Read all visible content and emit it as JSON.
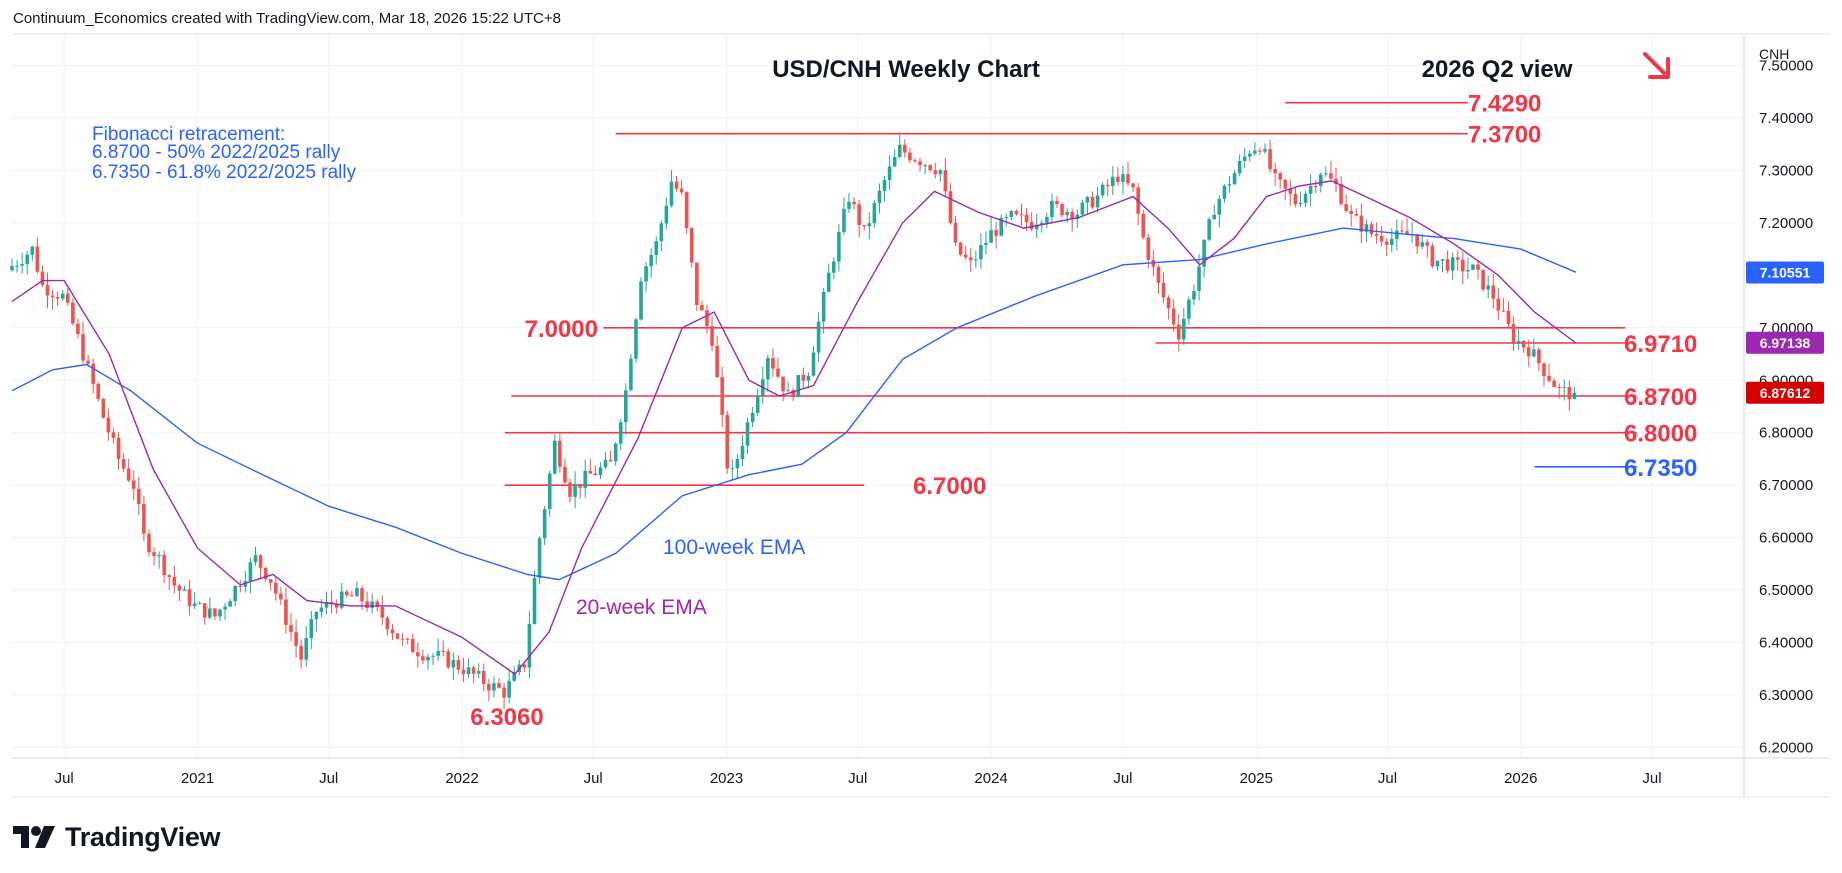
{
  "credit": "Continuum_Economics created with TradingView.com, Mar 18, 2026 15:22 UTC+8",
  "brand": "TradingView",
  "colors": {
    "up": "#26a69a",
    "down": "#ef5350",
    "level": "#f23645",
    "fib": "#2962ff",
    "ema20": "#9c27b0",
    "ema100": "#2962ff",
    "grid": "#f0f3fa",
    "text": "#131722"
  },
  "chart_data": {
    "type": "candlestick",
    "title": "USD/CNH Weekly Chart",
    "subtitle": "2026 Q2 view",
    "currency": "CNH",
    "outlook_icon": "arrow-down-right-icon",
    "y_ticks": [
      "7.50000",
      "7.40000",
      "7.30000",
      "7.20000",
      "7.00000",
      "6.90000",
      "6.80000",
      "6.70000",
      "6.60000",
      "6.50000",
      "6.40000",
      "6.30000",
      "6.20000"
    ],
    "ylim": [
      6.18,
      7.56
    ],
    "x_ticks": [
      "Jul",
      "2021",
      "Jul",
      "2022",
      "Jul",
      "2023",
      "Jul",
      "2024",
      "Jul",
      "2025",
      "Jul",
      "2026",
      "Jul"
    ],
    "x_tick_dates": [
      "2020-07-01",
      "2021-01-01",
      "2021-07-01",
      "2022-01-01",
      "2022-07-01",
      "2023-01-01",
      "2023-07-01",
      "2024-01-01",
      "2024-07-01",
      "2025-01-01",
      "2025-07-01",
      "2026-01-01",
      "2026-07-01"
    ],
    "xlim": [
      "2020-04-20",
      "2026-11-05"
    ],
    "fib_note": {
      "heading": "Fibonacci retracement:",
      "lines": [
        "6.8700 - 50% 2022/2025 rally",
        "6.7350 - 61.8% 2022/2025 rally"
      ]
    },
    "levels": [
      {
        "label": "7.4290",
        "value": 7.429,
        "from": "2025-02-10",
        "to": "2025-10-20",
        "color": "#f23645"
      },
      {
        "label": "7.3700",
        "value": 7.37,
        "from": "2022-08-01",
        "to": "2025-10-20",
        "color": "#f23645"
      },
      {
        "label": "7.0000",
        "value": 7.0,
        "from": "2022-07-15",
        "to": "2026-05-25",
        "color": "#f23645"
      },
      {
        "label": "6.9710",
        "value": 6.971,
        "from": "2024-08-15",
        "to": "2026-05-25",
        "color": "#f23645"
      },
      {
        "label": "6.8700",
        "value": 6.87,
        "from": "2022-03-10",
        "to": "2026-06-10",
        "color": "#f23645"
      },
      {
        "label": "6.8000",
        "value": 6.8,
        "from": "2022-03-01",
        "to": "2026-06-10",
        "color": "#f23645"
      },
      {
        "label": "6.7000",
        "value": 6.7,
        "from": "2022-03-01",
        "to": "2023-07-10",
        "color": "#f23645"
      },
      {
        "label": "6.7350",
        "value": 6.735,
        "from": "2026-01-20",
        "to": "2026-06-10",
        "color": "#2962ff"
      },
      {
        "label": "6.3060",
        "value": 6.306,
        "from": null,
        "to": null,
        "color": "#f23645"
      }
    ],
    "annotations": [
      {
        "text": "100-week EMA",
        "color": "#2962ff"
      },
      {
        "text": "20-week EMA",
        "color": "#9c27b0"
      }
    ],
    "price_badges": [
      {
        "label": "7.10551",
        "value": 7.10551,
        "color": "#2962ff"
      },
      {
        "label": "6.97138",
        "value": 6.97138,
        "color": "#9c27b0"
      },
      {
        "label": "6.87612",
        "value": 6.87612,
        "color": "#d50000"
      }
    ],
    "price_path": [
      [
        "2020-04-20",
        7.11
      ],
      [
        "2020-05-25",
        7.15
      ],
      [
        "2020-06-08",
        7.08
      ],
      [
        "2020-07-06",
        7.06
      ],
      [
        "2020-07-27",
        6.98
      ],
      [
        "2020-08-31",
        6.83
      ],
      [
        "2020-09-21",
        6.75
      ],
      [
        "2020-10-12",
        6.7
      ],
      [
        "2020-10-26",
        6.6
      ],
      [
        "2020-11-16",
        6.56
      ],
      [
        "2020-12-07",
        6.51
      ],
      [
        "2021-01-04",
        6.47
      ],
      [
        "2021-02-01",
        6.45
      ],
      [
        "2021-02-22",
        6.49
      ],
      [
        "2021-03-29",
        6.56
      ],
      [
        "2021-04-19",
        6.52
      ],
      [
        "2021-05-17",
        6.42
      ],
      [
        "2021-05-31",
        6.37
      ],
      [
        "2021-06-21",
        6.46
      ],
      [
        "2021-07-19",
        6.48
      ],
      [
        "2021-08-16",
        6.49
      ],
      [
        "2021-09-20",
        6.45
      ],
      [
        "2021-10-18",
        6.4
      ],
      [
        "2021-11-15",
        6.38
      ],
      [
        "2021-12-13",
        6.37
      ],
      [
        "2022-01-10",
        6.35
      ],
      [
        "2022-02-14",
        6.32
      ],
      [
        "2022-03-07",
        6.306
      ],
      [
        "2022-04-04",
        6.36
      ],
      [
        "2022-04-25",
        6.6
      ],
      [
        "2022-05-16",
        6.78
      ],
      [
        "2022-06-06",
        6.69
      ],
      [
        "2022-07-04",
        6.72
      ],
      [
        "2022-08-01",
        6.74
      ],
      [
        "2022-08-22",
        6.88
      ],
      [
        "2022-09-12",
        7.1
      ],
      [
        "2022-10-03",
        7.16
      ],
      [
        "2022-10-24",
        7.28
      ],
      [
        "2022-11-07",
        7.25
      ],
      [
        "2022-11-28",
        7.05
      ],
      [
        "2022-12-19",
        6.98
      ],
      [
        "2023-01-09",
        6.74
      ],
      [
        "2023-01-16",
        6.72
      ],
      [
        "2023-02-13",
        6.85
      ],
      [
        "2023-03-06",
        6.95
      ],
      [
        "2023-04-03",
        6.87
      ],
      [
        "2023-05-01",
        6.92
      ],
      [
        "2023-05-29",
        7.1
      ],
      [
        "2023-06-26",
        7.25
      ],
      [
        "2023-07-17",
        7.18
      ],
      [
        "2023-08-14",
        7.28
      ],
      [
        "2023-09-04",
        7.34
      ],
      [
        "2023-10-02",
        7.32
      ],
      [
        "2023-10-30",
        7.3
      ],
      [
        "2023-11-20",
        7.15
      ],
      [
        "2023-12-11",
        7.12
      ],
      [
        "2024-01-08",
        7.18
      ],
      [
        "2024-02-05",
        7.21
      ],
      [
        "2024-03-04",
        7.2
      ],
      [
        "2024-04-01",
        7.23
      ],
      [
        "2024-05-06",
        7.22
      ],
      [
        "2024-06-03",
        7.25
      ],
      [
        "2024-07-01",
        7.29
      ],
      [
        "2024-07-22",
        7.26
      ],
      [
        "2024-08-05",
        7.17
      ],
      [
        "2024-08-26",
        7.08
      ],
      [
        "2024-09-23",
        6.99
      ],
      [
        "2024-10-14",
        7.08
      ],
      [
        "2024-11-11",
        7.23
      ],
      [
        "2024-12-02",
        7.28
      ],
      [
        "2024-12-30",
        7.34
      ],
      [
        "2025-01-13",
        7.35
      ],
      [
        "2025-02-03",
        7.28
      ],
      [
        "2025-03-03",
        7.24
      ],
      [
        "2025-03-24",
        7.27
      ],
      [
        "2025-04-07",
        7.3
      ],
      [
        "2025-04-28",
        7.27
      ],
      [
        "2025-05-19",
        7.21
      ],
      [
        "2025-06-16",
        7.18
      ],
      [
        "2025-07-14",
        7.17
      ],
      [
        "2025-08-11",
        7.18
      ],
      [
        "2025-09-08",
        7.13
      ],
      [
        "2025-10-06",
        7.12
      ],
      [
        "2025-11-03",
        7.11
      ],
      [
        "2025-12-01",
        7.06
      ],
      [
        "2025-12-29",
        6.98
      ],
      [
        "2026-01-19",
        6.96
      ],
      [
        "2026-02-09",
        6.92
      ],
      [
        "2026-03-02",
        6.88
      ],
      [
        "2026-03-16",
        6.876
      ]
    ],
    "ema20_path": [
      [
        "2020-04-20",
        7.05
      ],
      [
        "2020-06-01",
        7.09
      ],
      [
        "2020-07-01",
        7.09
      ],
      [
        "2020-09-01",
        6.95
      ],
      [
        "2020-11-01",
        6.73
      ],
      [
        "2021-01-01",
        6.58
      ],
      [
        "2021-03-01",
        6.51
      ],
      [
        "2021-04-15",
        6.53
      ],
      [
        "2021-06-01",
        6.48
      ],
      [
        "2021-08-01",
        6.47
      ],
      [
        "2021-10-01",
        6.47
      ],
      [
        "2022-01-01",
        6.41
      ],
      [
        "2022-03-15",
        6.34
      ],
      [
        "2022-05-01",
        6.42
      ],
      [
        "2022-06-15",
        6.58
      ],
      [
        "2022-09-01",
        6.79
      ],
      [
        "2022-11-01",
        7.0
      ],
      [
        "2022-12-15",
        7.03
      ],
      [
        "2023-02-01",
        6.9
      ],
      [
        "2023-03-15",
        6.87
      ],
      [
        "2023-05-01",
        6.89
      ],
      [
        "2023-07-01",
        7.05
      ],
      [
        "2023-09-01",
        7.2
      ],
      [
        "2023-10-15",
        7.26
      ],
      [
        "2023-12-15",
        7.22
      ],
      [
        "2024-02-15",
        7.19
      ],
      [
        "2024-05-01",
        7.21
      ],
      [
        "2024-07-15",
        7.25
      ],
      [
        "2024-09-01",
        7.19
      ],
      [
        "2024-10-15",
        7.12
      ],
      [
        "2024-12-01",
        7.17
      ],
      [
        "2025-01-15",
        7.25
      ],
      [
        "2025-03-01",
        7.27
      ],
      [
        "2025-04-15",
        7.28
      ],
      [
        "2025-06-01",
        7.25
      ],
      [
        "2025-08-01",
        7.21
      ],
      [
        "2025-10-01",
        7.16
      ],
      [
        "2025-12-01",
        7.1
      ],
      [
        "2026-01-20",
        7.03
      ],
      [
        "2026-03-18",
        6.971
      ]
    ],
    "ema100_path": [
      [
        "2020-04-20",
        6.88
      ],
      [
        "2020-06-15",
        6.92
      ],
      [
        "2020-08-01",
        6.93
      ],
      [
        "2020-10-01",
        6.88
      ],
      [
        "2021-01-01",
        6.78
      ],
      [
        "2021-04-01",
        6.72
      ],
      [
        "2021-07-01",
        6.66
      ],
      [
        "2021-10-01",
        6.62
      ],
      [
        "2022-01-01",
        6.57
      ],
      [
        "2022-04-01",
        6.53
      ],
      [
        "2022-05-15",
        6.52
      ],
      [
        "2022-08-01",
        6.57
      ],
      [
        "2022-11-01",
        6.68
      ],
      [
        "2023-02-01",
        6.72
      ],
      [
        "2023-04-15",
        6.74
      ],
      [
        "2023-06-15",
        6.8
      ],
      [
        "2023-09-01",
        6.94
      ],
      [
        "2023-11-15",
        7.0
      ],
      [
        "2024-03-01",
        7.06
      ],
      [
        "2024-07-01",
        7.12
      ],
      [
        "2024-10-15",
        7.13
      ],
      [
        "2025-01-15",
        7.16
      ],
      [
        "2025-05-01",
        7.19
      ],
      [
        "2025-07-15",
        7.18
      ],
      [
        "2025-10-01",
        7.17
      ],
      [
        "2026-01-01",
        7.15
      ],
      [
        "2026-03-18",
        7.106
      ]
    ]
  }
}
